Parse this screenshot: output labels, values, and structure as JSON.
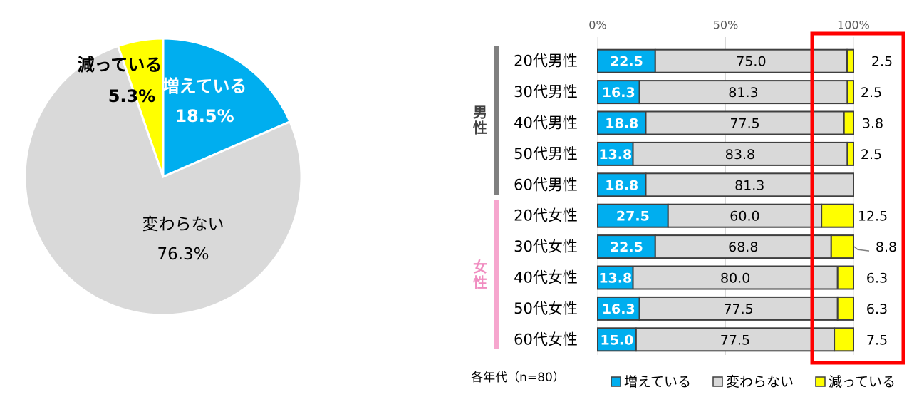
{
  "colors": {
    "increase": "#00AEEF",
    "same": "#D9D9D9",
    "decrease": "#FFFF00",
    "male_bar": "#808080",
    "female_bar": "#F6A6CE",
    "female_text": "#F08CC0",
    "highlight": "#FF0000",
    "outline": "#3F3F3F",
    "text": "#000000",
    "axis_text": "#595959"
  },
  "chart_data": [
    {
      "type": "pie",
      "slices": [
        {
          "key": "increase",
          "label": "増えている",
          "value": 18.5,
          "value_label": "18.5%"
        },
        {
          "key": "same",
          "label": "変わらない",
          "value": 76.3,
          "value_label": "76.3%"
        },
        {
          "key": "decrease",
          "label": "減っている",
          "value": 5.3,
          "value_label": "5.3%"
        }
      ]
    },
    {
      "type": "bar",
      "orientation": "horizontal",
      "stacked": true,
      "x_ticks": [
        "0%",
        "50%",
        "100%"
      ],
      "xlim": [
        0,
        100
      ],
      "groups": [
        {
          "label": "男性",
          "key": "male",
          "start": 0,
          "count": 5
        },
        {
          "label": "女性",
          "key": "female",
          "start": 5,
          "count": 5
        }
      ],
      "categories": [
        "20代男性",
        "30代男性",
        "40代男性",
        "50代男性",
        "60代男性",
        "20代女性",
        "30代女性",
        "40代女性",
        "50代女性",
        "60代女性"
      ],
      "series": [
        {
          "name": "増えている",
          "key": "increase",
          "values": [
            22.5,
            16.3,
            18.8,
            13.8,
            18.8,
            27.5,
            22.5,
            13.8,
            16.3,
            15.0
          ],
          "labels": [
            "22.5",
            "16.3",
            "18.8",
            "13.8",
            "18.8",
            "27.5",
            "22.5",
            "13.8",
            "16.3",
            "15.0"
          ]
        },
        {
          "name": "変わらない",
          "key": "same",
          "values": [
            75.0,
            81.3,
            77.5,
            83.8,
            81.3,
            60.0,
            68.8,
            80.0,
            77.5,
            77.5
          ],
          "labels": [
            "75.0",
            "81.3",
            "77.5",
            "83.8",
            "81.3",
            "60.0",
            "68.8",
            "80.0",
            "77.5",
            "77.5"
          ]
        },
        {
          "name": "減っている",
          "key": "decrease",
          "values": [
            2.5,
            2.5,
            3.8,
            2.5,
            0,
            12.5,
            8.8,
            6.3,
            6.3,
            7.5
          ],
          "labels": [
            "2.5",
            "2.5",
            "3.8",
            "2.5",
            "",
            "12.5",
            "8.8",
            "6.3",
            "6.3",
            "7.5"
          ]
        }
      ],
      "legend": [
        "増えている",
        "変わらない",
        "減っている"
      ],
      "note": "各年代（n=80）"
    }
  ]
}
